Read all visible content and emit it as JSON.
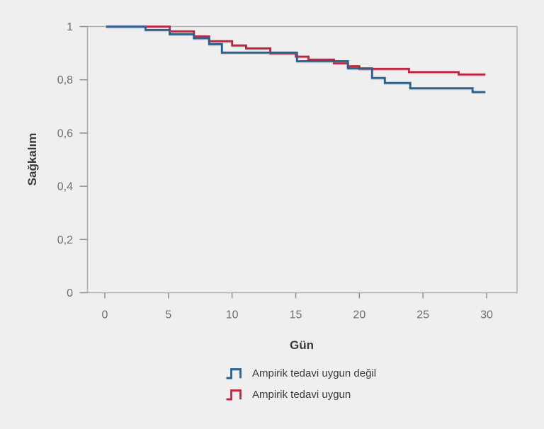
{
  "chart": {
    "background_color": "#efefef",
    "axis_line_color": "#b1b0af",
    "tick_color": "#909090",
    "tick_label_color": "#6e6e6e",
    "axis_title_color": "#3a3a3a"
  },
  "chart_data": {
    "type": "line",
    "subtype": "kaplan-meier-step",
    "title": "",
    "xlabel": "Gün",
    "ylabel": "Sağkalım",
    "xlim": [
      0,
      30
    ],
    "ylim": [
      0,
      1
    ],
    "x_ticks": [
      0,
      5,
      10,
      15,
      20,
      25,
      30
    ],
    "x_tick_labels": [
      "0",
      "5",
      "10",
      "15",
      "20",
      "25",
      "30"
    ],
    "y_ticks": [
      1,
      0.8,
      0.6,
      0.4,
      0.2,
      0
    ],
    "y_tick_labels": [
      "1",
      "0,8",
      "0,6",
      "0,4",
      "0,2",
      "0"
    ],
    "grid": false,
    "legend_position": "bottom-center",
    "end_day": 29.9,
    "series": [
      {
        "name": "Ampirik tedavi uygun değil",
        "color": "#27618f",
        "steps": [
          [
            0.1,
            1
          ],
          [
            3.2,
            0.987
          ],
          [
            5.1,
            0.971
          ],
          [
            7,
            0.956
          ],
          [
            8.2,
            0.934
          ],
          [
            9.2,
            0.902
          ],
          [
            15.1,
            0.87
          ],
          [
            19.1,
            0.843
          ],
          [
            21,
            0.807
          ],
          [
            22,
            0.788
          ],
          [
            24,
            0.768
          ],
          [
            28.9,
            0.754
          ]
        ]
      },
      {
        "name": "Ampirik tedavi uygun",
        "color": "#c0253f",
        "steps": [
          [
            0.1,
            1
          ],
          [
            5.1,
            0.982
          ],
          [
            7,
            0.963
          ],
          [
            8.2,
            0.945
          ],
          [
            10,
            0.929
          ],
          [
            11.1,
            0.918
          ],
          [
            13,
            0.899
          ],
          [
            15,
            0.887
          ],
          [
            16,
            0.876
          ],
          [
            18,
            0.862
          ],
          [
            19.1,
            0.851
          ],
          [
            20,
            0.841
          ],
          [
            23.9,
            0.829
          ],
          [
            27.8,
            0.82
          ]
        ]
      }
    ]
  }
}
